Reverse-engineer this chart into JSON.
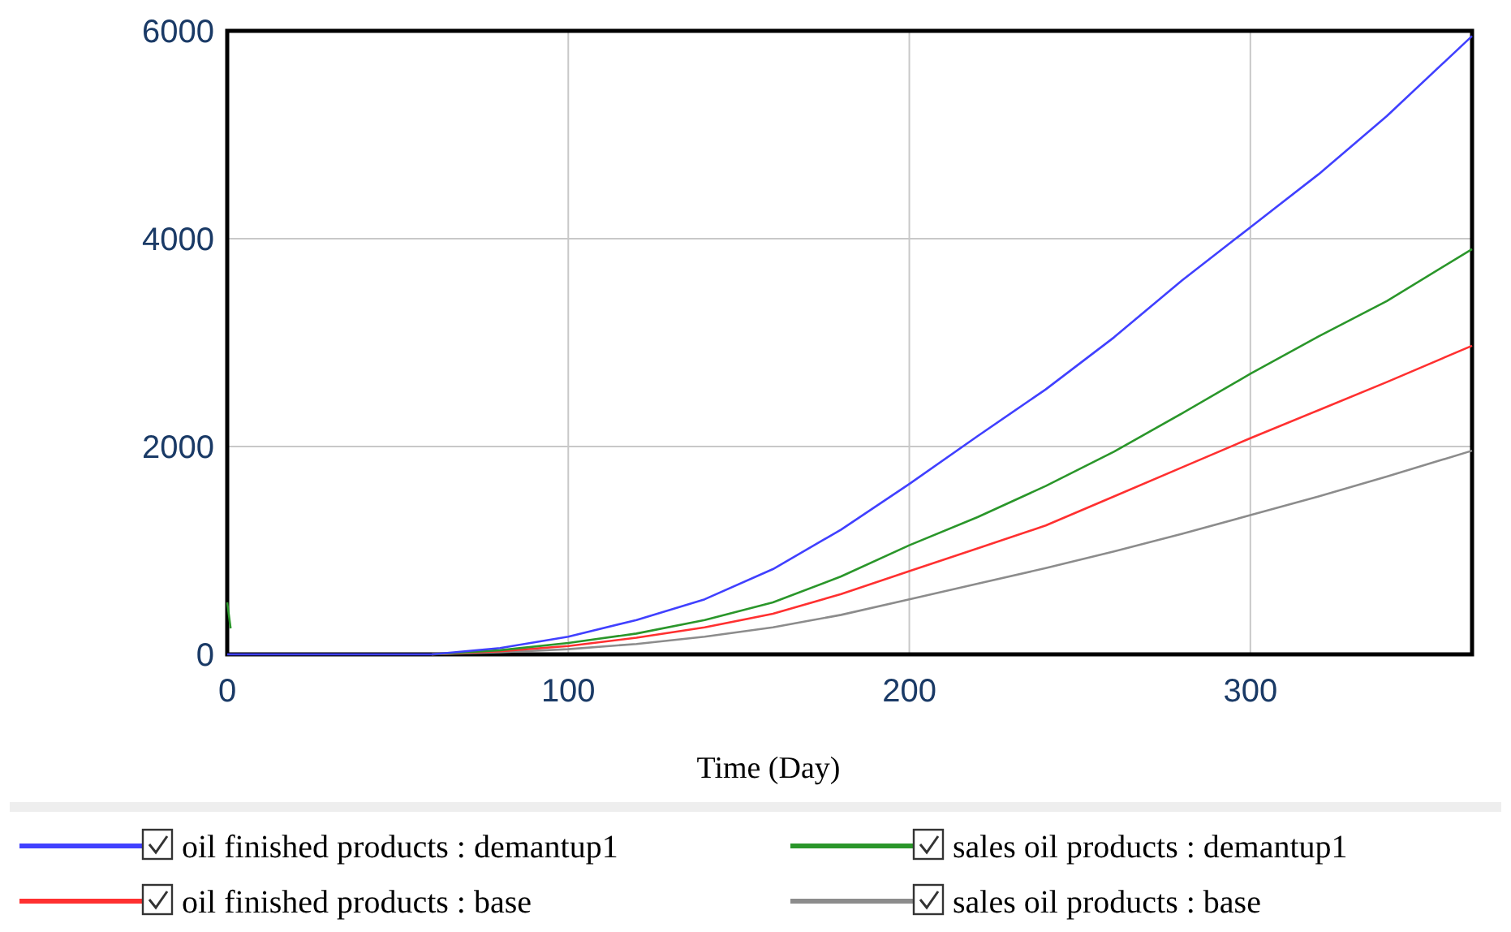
{
  "chart_data": {
    "type": "line",
    "xlabel": "Time (Day)",
    "xlim": [
      0,
      365
    ],
    "xticks": [
      0,
      100,
      200,
      300
    ],
    "ylim": [
      0,
      6000
    ],
    "yticks": [
      0,
      2000,
      4000,
      6000
    ],
    "grid": true,
    "legend": "bottom",
    "series": [
      {
        "name": "oil finished products : demantup1",
        "color": "#4040ff",
        "x": [
          0,
          20,
          40,
          60,
          80,
          100,
          120,
          140,
          160,
          180,
          200,
          220,
          240,
          260,
          280,
          300,
          320,
          340,
          365
        ],
        "values": [
          0,
          0,
          0,
          0,
          60,
          170,
          330,
          530,
          820,
          1200,
          1640,
          2100,
          2550,
          3050,
          3600,
          4110,
          4620,
          5180,
          5950
        ]
      },
      {
        "name": "sales oil products : demantup1",
        "color": "#2a962a",
        "x": [
          0,
          1,
          2,
          60,
          80,
          100,
          120,
          140,
          160,
          180,
          200,
          220,
          240,
          260,
          280,
          300,
          320,
          340,
          365
        ],
        "values": [
          500,
          250,
          null,
          0,
          40,
          110,
          200,
          330,
          500,
          750,
          1050,
          1320,
          1620,
          1950,
          2320,
          2700,
          3060,
          3400,
          3900
        ]
      },
      {
        "name": "oil finished products : base",
        "color": "#ff3030",
        "x": [
          60,
          80,
          100,
          120,
          140,
          160,
          180,
          200,
          220,
          240,
          260,
          280,
          300,
          320,
          340,
          365
        ],
        "values": [
          0,
          30,
          80,
          160,
          260,
          390,
          580,
          800,
          1020,
          1240,
          1520,
          1800,
          2080,
          2350,
          2620,
          2970
        ]
      },
      {
        "name": "sales oil products : base",
        "color": "#8c8c8c",
        "x": [
          60,
          80,
          100,
          120,
          140,
          160,
          180,
          200,
          220,
          240,
          260,
          280,
          300,
          320,
          340,
          365
        ],
        "values": [
          0,
          20,
          50,
          100,
          170,
          260,
          380,
          530,
          680,
          830,
          990,
          1160,
          1340,
          1520,
          1710,
          1960
        ]
      }
    ]
  }
}
